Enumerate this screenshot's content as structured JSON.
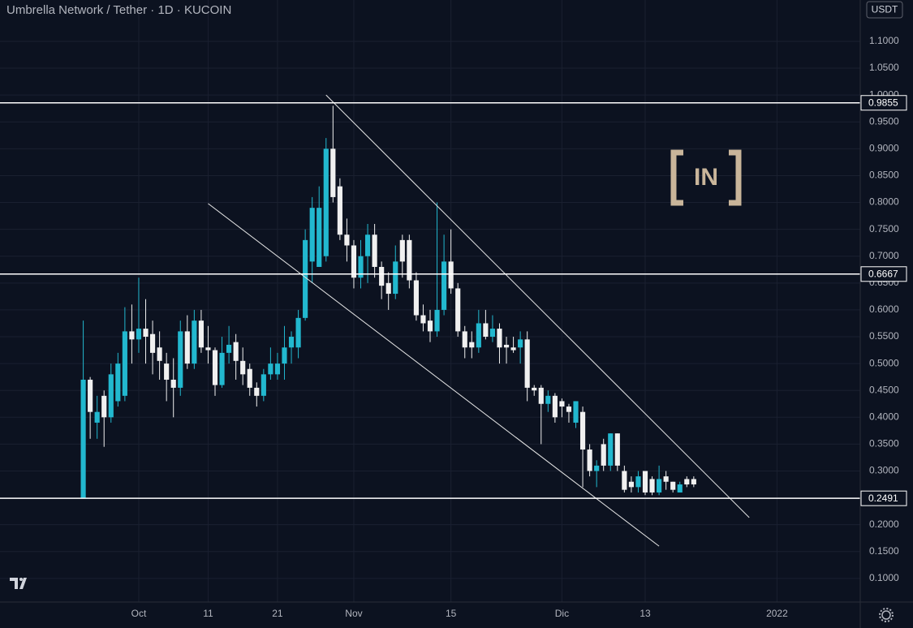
{
  "chart_data": {
    "type": "candlestick",
    "title": "Umbrella Network / Tether · 1D · KUCOIN",
    "currency": "USDT",
    "watermark": "IN",
    "up_color": "#22b8cf",
    "down_color": "#f0f0f0",
    "grid": true,
    "xlim": [
      "2021-09-11",
      "2022-01-13"
    ],
    "ylim": [
      0.056,
      1.177
    ],
    "xticks": [
      {
        "value": "2021-10-01",
        "label": "Oct"
      },
      {
        "value": "2021-10-11",
        "label": "11"
      },
      {
        "value": "2021-10-21",
        "label": "21"
      },
      {
        "value": "2021-11-01",
        "label": "Nov"
      },
      {
        "value": "2021-11-15",
        "label": "15"
      },
      {
        "value": "2021-12-01",
        "label": "Dic"
      },
      {
        "value": "2021-12-13",
        "label": "13"
      },
      {
        "value": "2022-01-01",
        "label": "2022"
      }
    ],
    "yticks": [
      {
        "value": 0.1,
        "label": "0.1000"
      },
      {
        "value": 0.15,
        "label": "0.1500"
      },
      {
        "value": 0.2,
        "label": "0.2000"
      },
      {
        "value": 0.25,
        "label": "0.2500"
      },
      {
        "value": 0.3,
        "label": "0.3000"
      },
      {
        "value": 0.35,
        "label": "0.3500"
      },
      {
        "value": 0.4,
        "label": "0.4000"
      },
      {
        "value": 0.45,
        "label": "0.4500"
      },
      {
        "value": 0.5,
        "label": "0.5000"
      },
      {
        "value": 0.55,
        "label": "0.5500"
      },
      {
        "value": 0.6,
        "label": "0.6000"
      },
      {
        "value": 0.65,
        "label": "0.6500"
      },
      {
        "value": 0.7,
        "label": "0.7000"
      },
      {
        "value": 0.75,
        "label": "0.7500"
      },
      {
        "value": 0.8,
        "label": "0.8000"
      },
      {
        "value": 0.85,
        "label": "0.8500"
      },
      {
        "value": 0.9,
        "label": "0.9000"
      },
      {
        "value": 0.95,
        "label": "0.9500"
      },
      {
        "value": 1.0,
        "label": "1.0000"
      },
      {
        "value": 1.05,
        "label": "1.0500"
      },
      {
        "value": 1.1,
        "label": "1.1000"
      }
    ],
    "levels": [
      0.9855,
      0.6667,
      0.2491
    ],
    "trendlines": [
      {
        "start": [
          "2021-10-28",
          1.0
        ],
        "end": [
          "2021-12-28",
          0.2133
        ]
      },
      {
        "start": [
          "2021-10-11",
          0.798
        ],
        "end": [
          "2021-12-15",
          0.16
        ]
      }
    ],
    "x": [
      "2021-09-23",
      "2021-09-24",
      "2021-09-25",
      "2021-09-26",
      "2021-09-27",
      "2021-09-28",
      "2021-09-29",
      "2021-09-30",
      "2021-10-01",
      "2021-10-02",
      "2021-10-03",
      "2021-10-04",
      "2021-10-05",
      "2021-10-06",
      "2021-10-07",
      "2021-10-08",
      "2021-10-09",
      "2021-10-10",
      "2021-10-11",
      "2021-10-12",
      "2021-10-13",
      "2021-10-14",
      "2021-10-15",
      "2021-10-16",
      "2021-10-17",
      "2021-10-18",
      "2021-10-19",
      "2021-10-20",
      "2021-10-21",
      "2021-10-22",
      "2021-10-23",
      "2021-10-24",
      "2021-10-25",
      "2021-10-26",
      "2021-10-27",
      "2021-10-28",
      "2021-10-29",
      "2021-10-30",
      "2021-10-31",
      "2021-11-01",
      "2021-11-02",
      "2021-11-03",
      "2021-11-04",
      "2021-11-05",
      "2021-11-06",
      "2021-11-07",
      "2021-11-08",
      "2021-11-09",
      "2021-11-10",
      "2021-11-11",
      "2021-11-12",
      "2021-11-13",
      "2021-11-14",
      "2021-11-15",
      "2021-11-16",
      "2021-11-17",
      "2021-11-18",
      "2021-11-19",
      "2021-11-20",
      "2021-11-21",
      "2021-11-22",
      "2021-11-23",
      "2021-11-24",
      "2021-11-25",
      "2021-11-26",
      "2021-11-27",
      "2021-11-28",
      "2021-11-29",
      "2021-11-30",
      "2021-12-01",
      "2021-12-02",
      "2021-12-03",
      "2021-12-04",
      "2021-12-05",
      "2021-12-06",
      "2021-12-07",
      "2021-12-08",
      "2021-12-09",
      "2021-12-10",
      "2021-12-11",
      "2021-12-12",
      "2021-12-13",
      "2021-12-14",
      "2021-12-15",
      "2021-12-16",
      "2021-12-17",
      "2021-12-18",
      "2021-12-19",
      "2021-12-20"
    ],
    "open": [
      0.2491,
      0.47,
      0.39,
      0.44,
      0.4,
      0.43,
      0.44,
      0.56,
      0.545,
      0.565,
      0.555,
      0.53,
      0.5,
      0.47,
      0.455,
      0.56,
      0.5,
      0.58,
      0.53,
      0.525,
      0.46,
      0.52,
      0.54,
      0.505,
      0.49,
      0.455,
      0.44,
      0.48,
      0.48,
      0.5,
      0.53,
      0.53,
      0.585,
      0.69,
      0.68,
      0.7,
      0.9,
      0.83,
      0.74,
      0.72,
      0.66,
      0.7,
      0.74,
      0.68,
      0.65,
      0.63,
      0.73,
      0.73,
      0.655,
      0.59,
      0.58,
      0.56,
      0.6,
      0.69,
      0.64,
      0.56,
      0.54,
      0.53,
      0.575,
      0.55,
      0.565,
      0.535,
      0.53,
      0.53,
      0.545,
      0.455,
      0.455,
      0.425,
      0.44,
      0.43,
      0.42,
      0.39,
      0.41,
      0.34,
      0.3,
      0.35,
      0.31,
      0.37,
      0.3,
      0.28,
      0.27,
      0.3,
      0.285,
      0.26,
      0.29,
      0.28,
      0.26,
      0.285,
      0.285
    ],
    "high": [
      0.58,
      0.475,
      0.44,
      0.45,
      0.5,
      0.52,
      0.605,
      0.61,
      0.66,
      0.62,
      0.58,
      0.56,
      0.52,
      0.51,
      0.58,
      0.59,
      0.6,
      0.6,
      0.57,
      0.53,
      0.55,
      0.57,
      0.555,
      0.53,
      0.5,
      0.465,
      0.49,
      0.53,
      0.52,
      0.57,
      0.56,
      0.6,
      0.75,
      0.81,
      0.83,
      0.92,
      0.98,
      0.845,
      0.77,
      0.73,
      0.73,
      0.76,
      0.76,
      0.69,
      0.67,
      0.72,
      0.74,
      0.74,
      0.67,
      0.61,
      0.6,
      0.8,
      0.74,
      0.75,
      0.65,
      0.57,
      0.56,
      0.6,
      0.6,
      0.59,
      0.575,
      0.55,
      0.55,
      0.56,
      0.56,
      0.46,
      0.46,
      0.45,
      0.445,
      0.435,
      0.425,
      0.43,
      0.42,
      0.35,
      0.32,
      0.36,
      0.37,
      0.37,
      0.31,
      0.29,
      0.3,
      0.3,
      0.29,
      0.31,
      0.3,
      0.28,
      0.28,
      0.29,
      0.29
    ],
    "low": [
      0.2491,
      0.36,
      0.36,
      0.345,
      0.39,
      0.42,
      0.43,
      0.5,
      0.52,
      0.5,
      0.48,
      0.47,
      0.43,
      0.4,
      0.44,
      0.49,
      0.49,
      0.52,
      0.5,
      0.44,
      0.455,
      0.5,
      0.47,
      0.46,
      0.44,
      0.42,
      0.43,
      0.47,
      0.47,
      0.47,
      0.5,
      0.51,
      0.58,
      0.65,
      0.68,
      0.69,
      0.8,
      0.73,
      0.69,
      0.64,
      0.64,
      0.65,
      0.66,
      0.62,
      0.6,
      0.62,
      0.66,
      0.64,
      0.58,
      0.56,
      0.54,
      0.55,
      0.59,
      0.63,
      0.55,
      0.51,
      0.51,
      0.52,
      0.545,
      0.54,
      0.5,
      0.5,
      0.52,
      0.5,
      0.43,
      0.44,
      0.35,
      0.41,
      0.39,
      0.4,
      0.39,
      0.38,
      0.27,
      0.29,
      0.27,
      0.3,
      0.3,
      0.3,
      0.26,
      0.26,
      0.26,
      0.255,
      0.255,
      0.255,
      0.265,
      0.26,
      0.26,
      0.27,
      0.27
    ],
    "close": [
      0.47,
      0.41,
      0.41,
      0.4,
      0.48,
      0.5,
      0.56,
      0.545,
      0.565,
      0.55,
      0.52,
      0.505,
      0.47,
      0.455,
      0.56,
      0.5,
      0.58,
      0.53,
      0.525,
      0.46,
      0.52,
      0.535,
      0.505,
      0.48,
      0.455,
      0.44,
      0.48,
      0.5,
      0.5,
      0.53,
      0.55,
      0.585,
      0.73,
      0.79,
      0.79,
      0.9,
      0.81,
      0.74,
      0.72,
      0.66,
      0.7,
      0.74,
      0.68,
      0.645,
      0.63,
      0.69,
      0.69,
      0.655,
      0.59,
      0.575,
      0.56,
      0.6,
      0.69,
      0.64,
      0.56,
      0.53,
      0.53,
      0.575,
      0.55,
      0.565,
      0.53,
      0.53,
      0.525,
      0.545,
      0.455,
      0.45,
      0.425,
      0.44,
      0.4,
      0.42,
      0.41,
      0.43,
      0.34,
      0.3,
      0.31,
      0.31,
      0.37,
      0.31,
      0.265,
      0.27,
      0.29,
      0.26,
      0.26,
      0.285,
      0.28,
      0.265,
      0.275,
      0.275,
      0.275
    ]
  }
}
